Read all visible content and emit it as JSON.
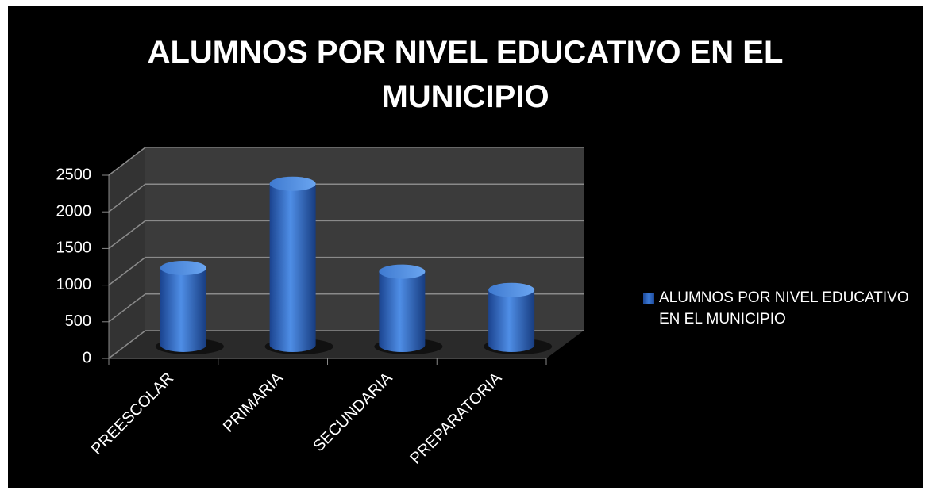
{
  "chart_data": {
    "type": "bar3d",
    "title": "ALUMNOS POR NIVEL EDUCATIVO EN EL MUNICIPIO",
    "categories": [
      "PREESCOLAR",
      "PRIMARIA",
      "SECUNDARIA",
      "PREPARATORIA"
    ],
    "series": [
      {
        "name": "ALUMNOS POR NIVEL EDUCATIVO EN EL MUNICIPIO",
        "color": "#3a78d4",
        "values": [
          1050,
          2200,
          1000,
          750
        ]
      }
    ],
    "ylim": [
      0,
      2500
    ],
    "yticks": [
      0,
      500,
      1000,
      1500,
      2000,
      2500
    ],
    "grid": true,
    "legend": "right"
  }
}
